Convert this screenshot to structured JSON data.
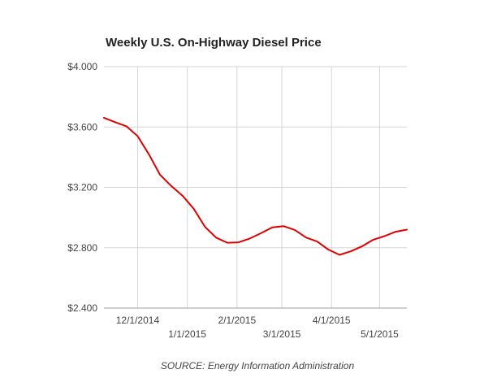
{
  "chart_data": {
    "type": "line",
    "title": "Weekly U.S. On-Highway Diesel Price",
    "xlabel": "",
    "ylabel": "",
    "source": "SOURCE: Energy Information Administration",
    "ylim": [
      2.4,
      4.0
    ],
    "xlim": [
      "2014-11-10",
      "2015-05-18"
    ],
    "y_ticks": [
      {
        "value": 4.0,
        "label": "$4.000"
      },
      {
        "value": 3.6,
        "label": "$3.600"
      },
      {
        "value": 3.2,
        "label": "$3.200"
      },
      {
        "value": 2.8,
        "label": "$2.800"
      },
      {
        "value": 2.4,
        "label": "$2.400"
      }
    ],
    "x_ticks": [
      {
        "date": "2014-12-01",
        "label": "12/1/2014",
        "row": 1
      },
      {
        "date": "2015-01-01",
        "label": "1/1/2015",
        "row": 2
      },
      {
        "date": "2015-02-01",
        "label": "2/1/2015",
        "row": 1
      },
      {
        "date": "2015-03-01",
        "label": "3/1/2015",
        "row": 2
      },
      {
        "date": "2015-04-01",
        "label": "4/1/2015",
        "row": 1
      },
      {
        "date": "2015-05-01",
        "label": "5/1/2015",
        "row": 2
      }
    ],
    "grid": true,
    "line_color": "#e00000",
    "series": [
      {
        "x": [
          "2014-11-10",
          "2014-11-17",
          "2014-11-24",
          "2014-12-01",
          "2014-12-08",
          "2014-12-15",
          "2014-12-22",
          "2014-12-29",
          "2015-01-05",
          "2015-01-12",
          "2015-01-19",
          "2015-01-26",
          "2015-02-02",
          "2015-02-09",
          "2015-02-16",
          "2015-02-23",
          "2015-03-02",
          "2015-03-09",
          "2015-03-16",
          "2015-03-23",
          "2015-03-30",
          "2015-04-06",
          "2015-04-13",
          "2015-04-20",
          "2015-04-27",
          "2015-05-04",
          "2015-05-11",
          "2015-05-18"
        ],
        "values": [
          3.661,
          3.632,
          3.605,
          3.54,
          3.42,
          3.283,
          3.209,
          3.145,
          3.059,
          2.939,
          2.867,
          2.833,
          2.836,
          2.861,
          2.896,
          2.935,
          2.943,
          2.918,
          2.868,
          2.841,
          2.788,
          2.753,
          2.776,
          2.809,
          2.853,
          2.877,
          2.906,
          2.92
        ]
      }
    ]
  }
}
